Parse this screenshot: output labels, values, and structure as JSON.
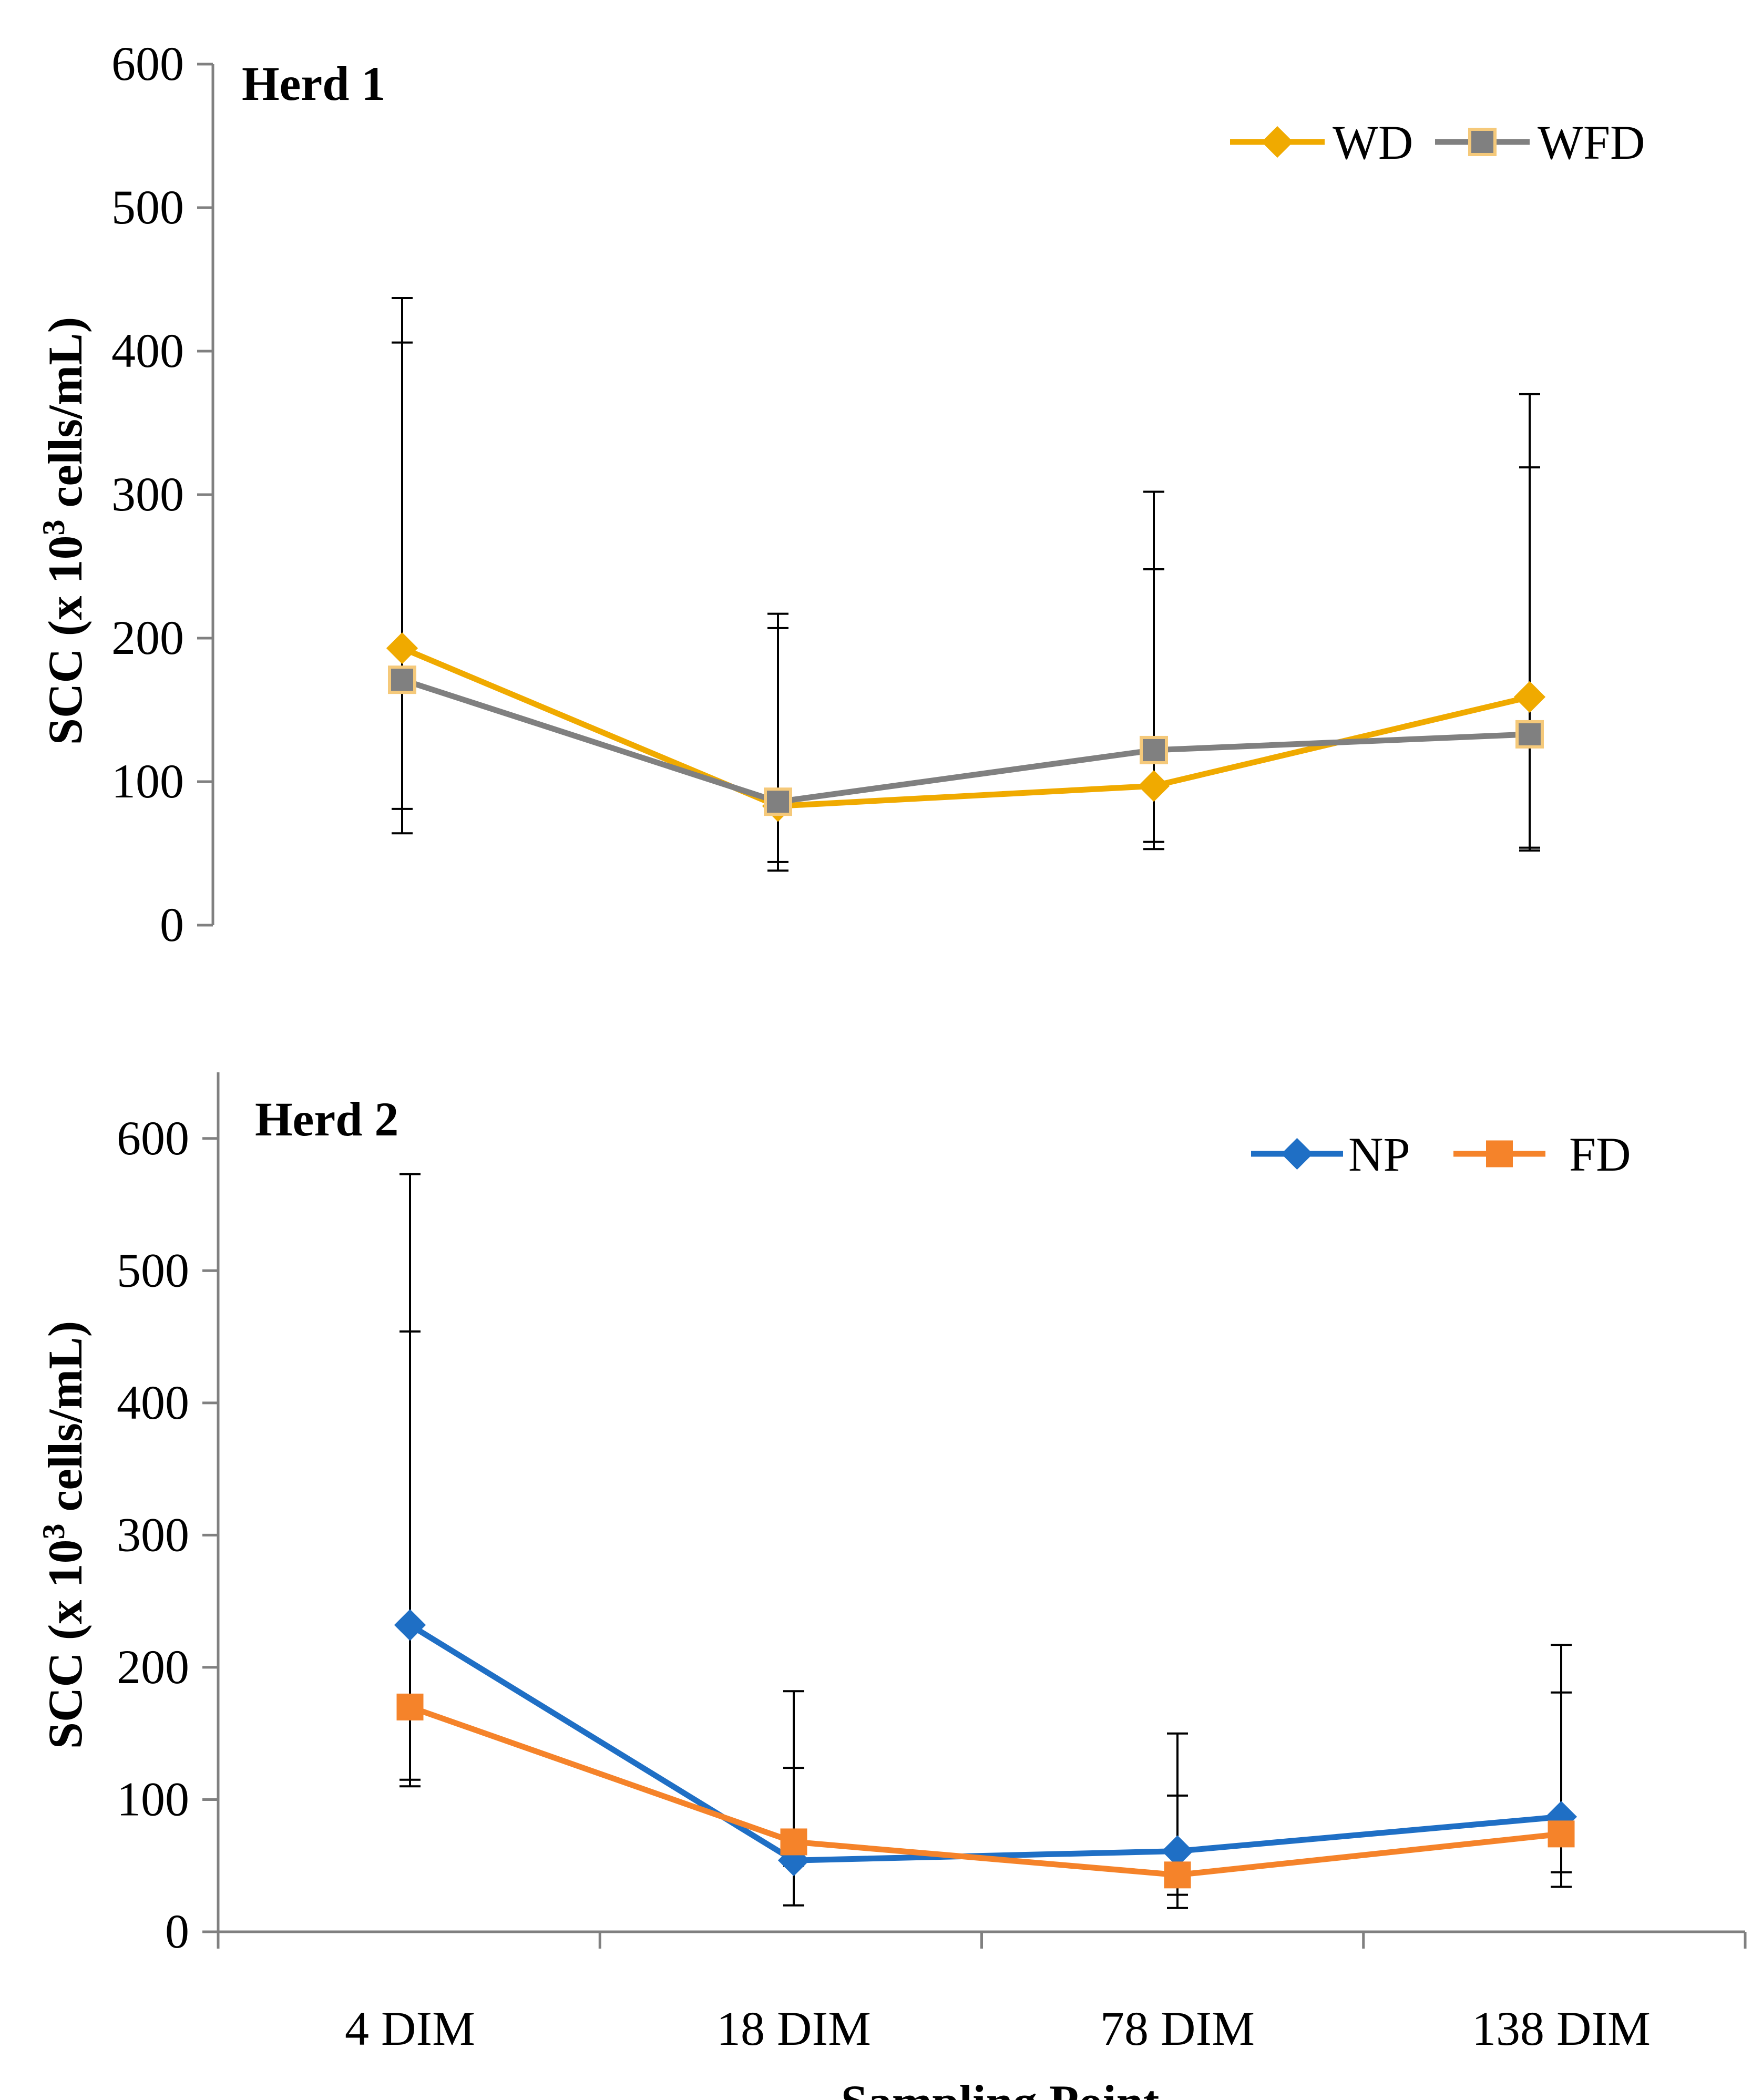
{
  "chart_data": [
    {
      "type": "line",
      "panel_label": "Herd 1",
      "ylabel": "SCC (x 10³ cells/mL)",
      "ylabel_main": "SCC (x 10",
      "ylabel_sup": "3",
      "ylabel_tail": " cells/mL)",
      "xlabel": "",
      "categories": [
        "4 DIM",
        "18 DIM",
        "78 DIM",
        "138 DIM"
      ],
      "ylim": [
        0,
        600
      ],
      "yticks": [
        0,
        100,
        200,
        300,
        400,
        500,
        600
      ],
      "grid": false,
      "legend_position": "top-right",
      "show_category_labels": false,
      "series": [
        {
          "name": "WD",
          "color": "#F0AA00",
          "marker": "diamond",
          "values": [
            193,
            83,
            97,
            159
          ],
          "err_low": [
            64,
            38,
            53,
            52
          ],
          "err_high": [
            437,
            217,
            302,
            370
          ]
        },
        {
          "name": "WFD",
          "color": "#808080",
          "marker_edge": "#F5C97A",
          "marker": "square",
          "values": [
            171,
            86,
            122,
            133
          ],
          "err_low": [
            81,
            44,
            58,
            54
          ],
          "err_high": [
            406,
            207,
            248,
            319
          ]
        }
      ]
    },
    {
      "type": "line",
      "panel_label": "Herd 2",
      "ylabel": "SCC (x 10³ cells/mL)",
      "ylabel_main": "SCC (x 10",
      "ylabel_sup": "3",
      "ylabel_tail": " cells/mL)",
      "xlabel": "Sampling Point",
      "categories": [
        "4 DIM",
        "18 DIM",
        "78 DIM",
        "138 DIM"
      ],
      "ylim": [
        0,
        650
      ],
      "yticks": [
        0,
        100,
        200,
        300,
        400,
        500,
        600
      ],
      "grid": false,
      "legend_position": "top-right",
      "show_category_labels": true,
      "series": [
        {
          "name": "NP",
          "color": "#1F6FC5",
          "marker": "diamond",
          "values": [
            232,
            54,
            61,
            87
          ],
          "err_low": [
            110,
            20,
            18,
            45
          ],
          "err_high": [
            573,
            182,
            150,
            217
          ]
        },
        {
          "name": "FD",
          "color": "#F5832A",
          "marker": "square",
          "values": [
            170,
            68,
            43,
            74
          ],
          "err_low": [
            115,
            50,
            28,
            34
          ],
          "err_high": [
            454,
            124,
            103,
            181
          ]
        }
      ]
    }
  ]
}
